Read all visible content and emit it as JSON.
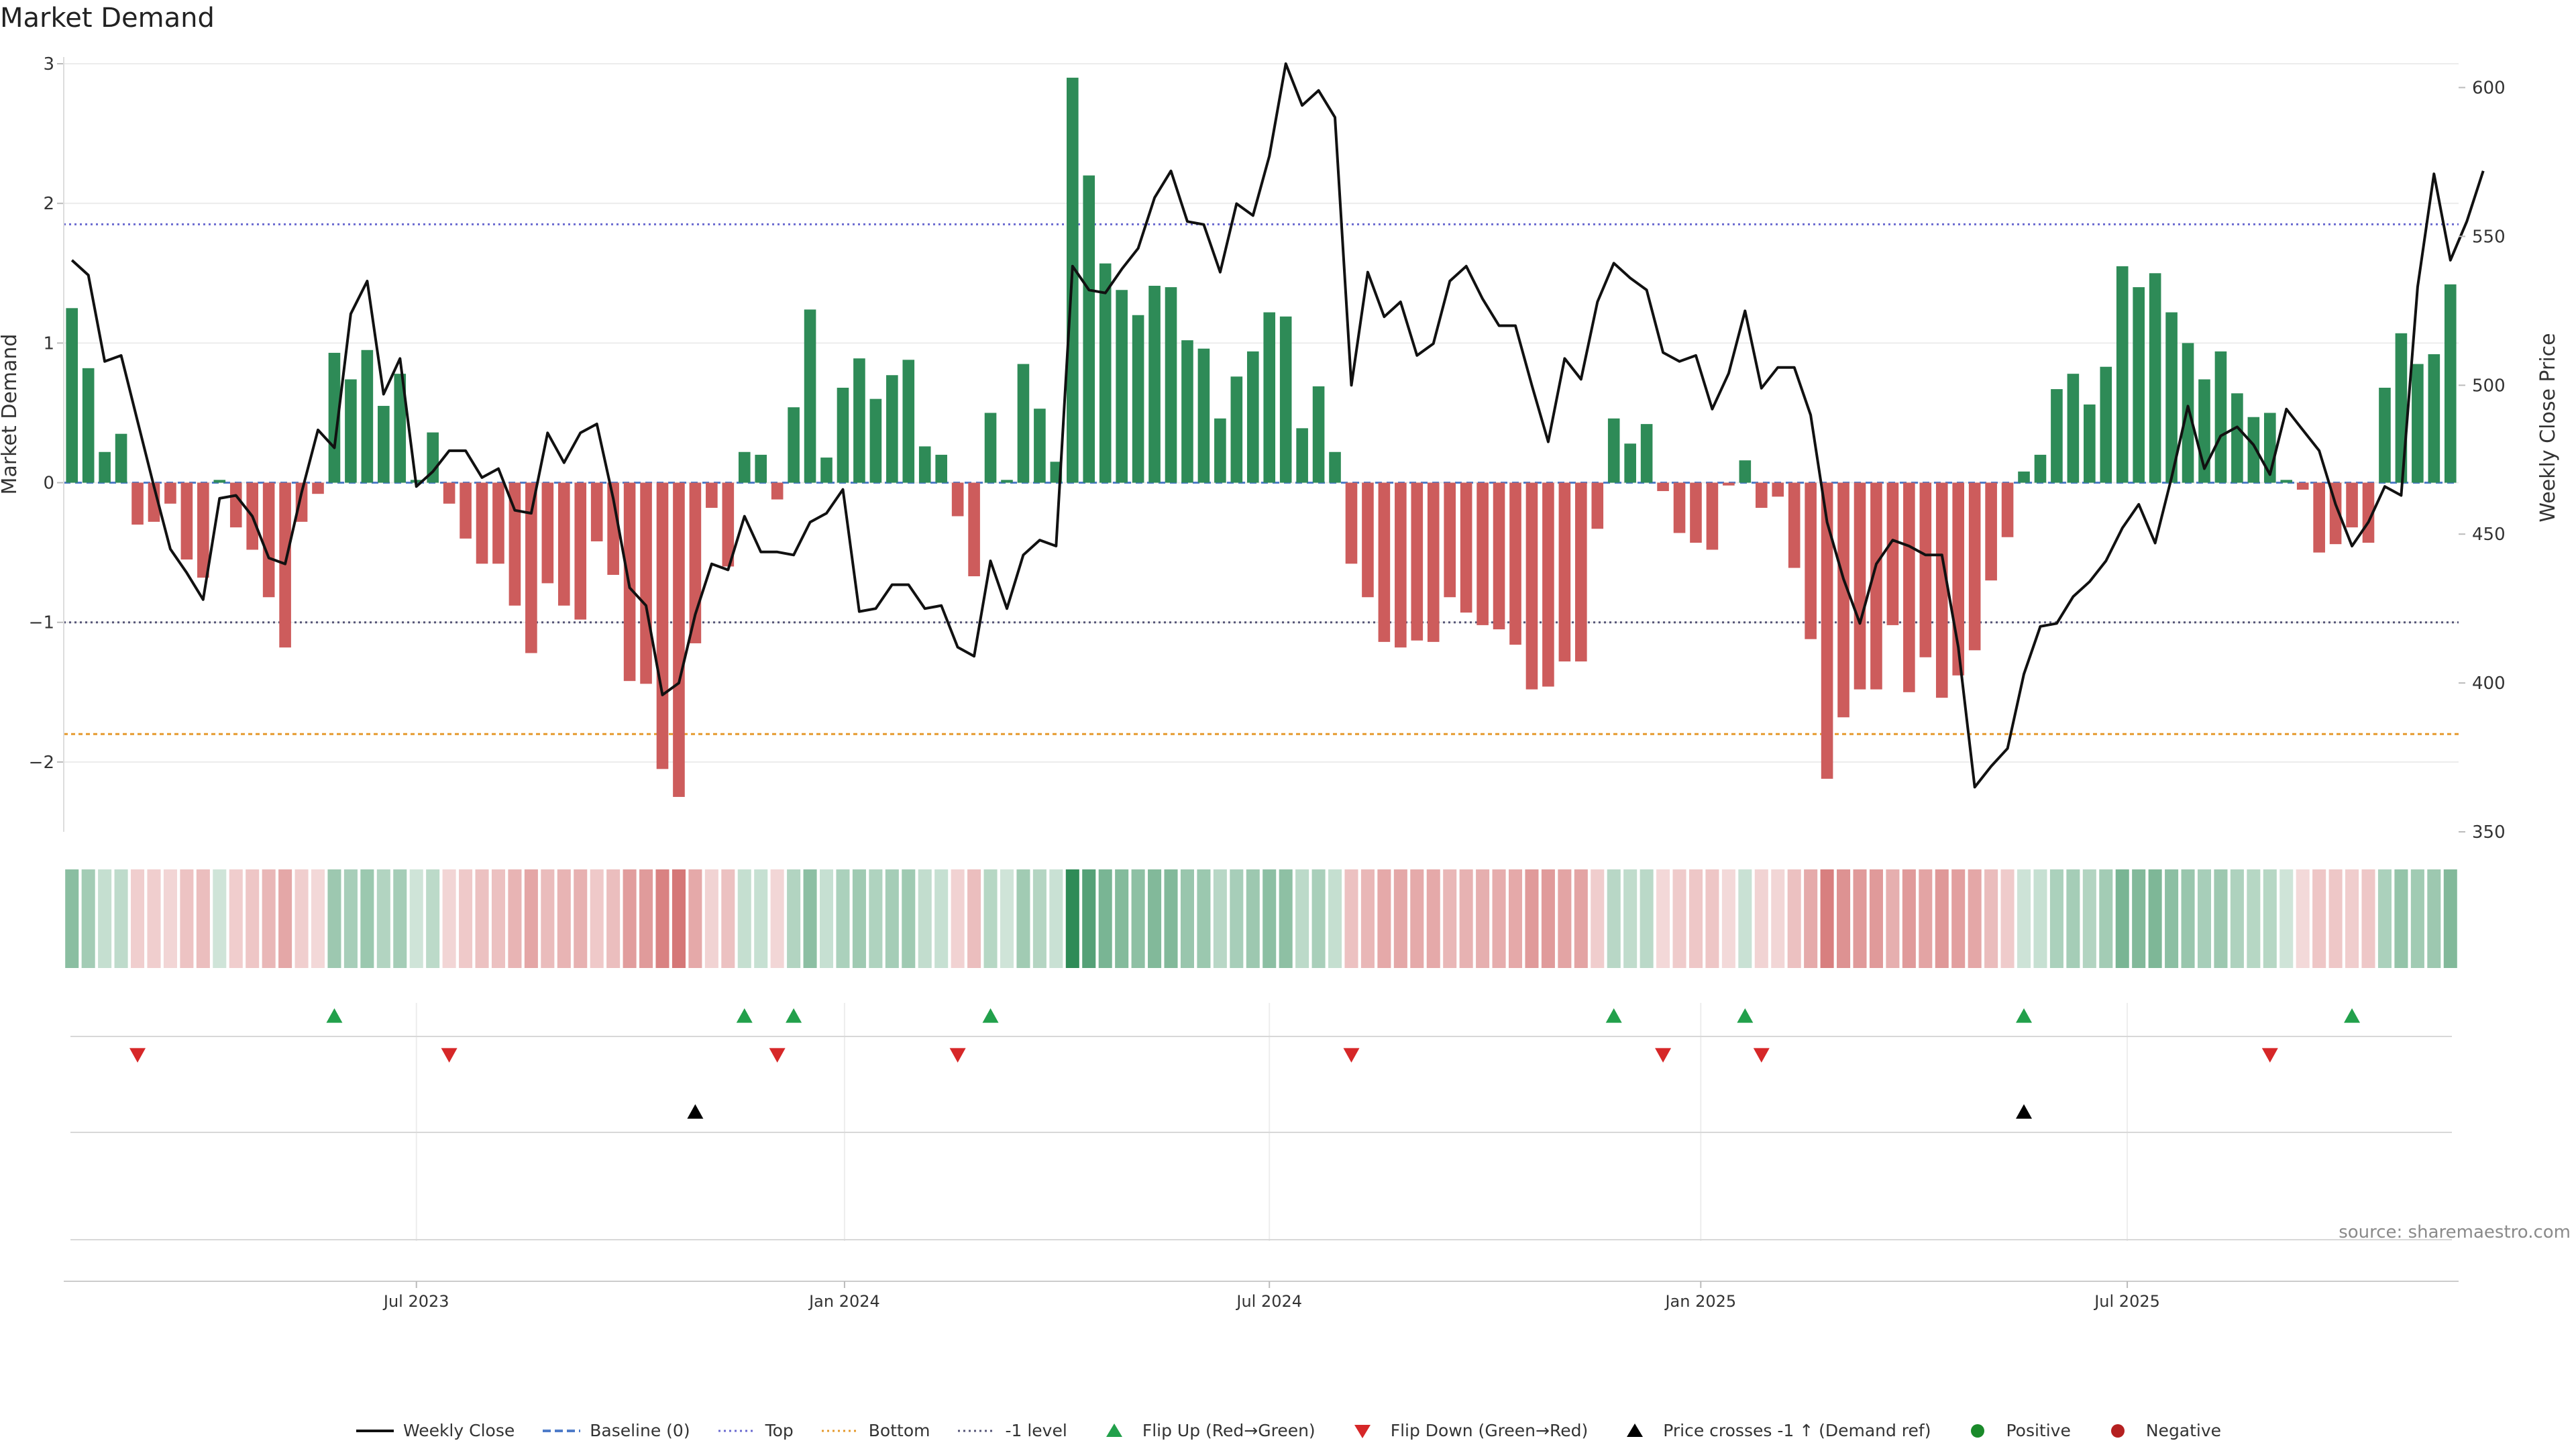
{
  "title": "Market Demand",
  "source": "source: sharemaestro.com",
  "colors": {
    "positive": "#2e8b57",
    "negative": "#cd5c5c",
    "price": "#111111",
    "baseline": "#4f7cc9",
    "top": "#6a6ad0",
    "bottom": "#e69a2e",
    "minus1": "#555577",
    "flip_up": "#22a04b",
    "flip_down": "#d62728",
    "cross": "#000000",
    "positive_dot": "#1a8a2a",
    "negative_dot": "#b52020"
  },
  "legend": [
    {
      "key": "price",
      "label": "Weekly Close",
      "kind": "line"
    },
    {
      "key": "baseline",
      "label": "Baseline (0)",
      "kind": "dash"
    },
    {
      "key": "top",
      "label": "Top",
      "kind": "dot"
    },
    {
      "key": "bottom",
      "label": "Bottom",
      "kind": "dot"
    },
    {
      "key": "minus1",
      "label": "-1 level",
      "kind": "dot"
    },
    {
      "key": "flip_up",
      "label": "Flip Up (Red→Green)",
      "kind": "tri-up"
    },
    {
      "key": "flip_down",
      "label": "Flip Down (Green→Red)",
      "kind": "tri-down"
    },
    {
      "key": "cross",
      "label": "Price crosses -1 ↑ (Demand ref)",
      "kind": "tri-up"
    },
    {
      "key": "positive_dot",
      "label": "Positive",
      "kind": "circle"
    },
    {
      "key": "negative_dot",
      "label": "Negative",
      "kind": "circle"
    }
  ],
  "chart_data": {
    "type": "bar",
    "title": "Market Demand",
    "ylabel": "Market Demand",
    "y2label": "Weekly Close Price",
    "ylim": [
      -2.5,
      3.0
    ],
    "y_ticks": [
      {
        "value": 3,
        "label": "3"
      },
      {
        "value": 2,
        "label": "2"
      },
      {
        "value": 1,
        "label": "1"
      },
      {
        "value": 0,
        "label": "0"
      },
      {
        "value": -1,
        "label": "−1"
      },
      {
        "value": -2,
        "label": "−2"
      }
    ],
    "y2lim": [
      350,
      608
    ],
    "y2_ticks": [
      {
        "value": 600,
        "label": "600"
      },
      {
        "value": 550,
        "label": "550"
      },
      {
        "value": 500,
        "label": "500"
      },
      {
        "value": 450,
        "label": "450"
      },
      {
        "value": 400,
        "label": "400"
      },
      {
        "value": 350,
        "label": "350"
      }
    ],
    "x_ticks": [
      {
        "index": 21.5,
        "label": "Jul 2023"
      },
      {
        "index": 47.6,
        "label": "Jan 2024"
      },
      {
        "index": 73.5,
        "label": "Jul 2024"
      },
      {
        "index": 99.8,
        "label": "Jan 2025"
      },
      {
        "index": 125.8,
        "label": "Jul 2025"
      }
    ],
    "reference_lines": {
      "top": 1.85,
      "bottom": -1.8,
      "minus1": -1.0,
      "baseline": 0
    },
    "demand": [
      1.25,
      0.82,
      0.22,
      0.35,
      -0.3,
      -0.28,
      -0.15,
      -0.55,
      -0.68,
      0.02,
      -0.32,
      -0.48,
      -0.82,
      -1.18,
      -0.28,
      -0.08,
      0.93,
      0.74,
      0.95,
      0.55,
      0.78,
      0.02,
      0.36,
      -0.15,
      -0.4,
      -0.58,
      -0.58,
      -0.88,
      -1.22,
      -0.72,
      -0.88,
      -0.98,
      -0.42,
      -0.66,
      -1.42,
      -1.44,
      -2.05,
      -2.25,
      -1.15,
      -0.18,
      -0.6,
      0.22,
      0.2,
      -0.12,
      0.54,
      1.24,
      0.18,
      0.68,
      0.89,
      0.6,
      0.77,
      0.88,
      0.26,
      0.2,
      -0.24,
      -0.67,
      0.5,
      0.02,
      0.85,
      0.53,
      0.15,
      2.9,
      2.2,
      1.57,
      1.38,
      1.2,
      1.41,
      1.4,
      1.02,
      0.96,
      0.46,
      0.76,
      0.94,
      1.22,
      1.19,
      0.39,
      0.69,
      0.22,
      -0.58,
      -0.82,
      -1.14,
      -1.18,
      -1.13,
      -1.14,
      -0.82,
      -0.93,
      -1.02,
      -1.05,
      -1.16,
      -1.48,
      -1.46,
      -1.28,
      -1.28,
      -0.33,
      0.46,
      0.28,
      0.42,
      -0.06,
      -0.36,
      -0.43,
      -0.48,
      -0.02,
      0.16,
      -0.18,
      -0.1,
      -0.61,
      -1.12,
      -2.12,
      -1.68,
      -1.48,
      -1.48,
      -1.02,
      -1.5,
      -1.25,
      -1.54,
      -1.38,
      -1.2,
      -0.7,
      -0.39,
      0.08,
      0.2,
      0.67,
      0.78,
      0.56,
      0.83,
      1.55,
      1.4,
      1.5,
      1.22,
      1.0,
      0.74,
      0.94,
      0.64,
      0.47,
      0.5,
      0.02,
      -0.05,
      -0.5,
      -0.44,
      -0.32,
      -0.43,
      0.68,
      1.07,
      0.85,
      0.92,
      1.42
    ],
    "price": [
      542,
      537,
      508,
      510,
      488,
      466,
      445,
      437,
      428,
      462,
      463,
      456,
      442,
      440,
      464,
      485,
      479,
      524,
      535,
      497,
      509,
      466,
      471,
      478,
      478,
      469,
      472,
      458,
      457,
      484,
      474,
      484,
      487,
      462,
      432,
      426,
      396,
      400,
      423,
      440,
      438,
      456,
      444,
      444,
      443,
      454,
      457,
      465,
      424,
      425,
      433,
      433,
      425,
      426,
      412,
      409,
      441,
      425,
      443,
      448,
      446,
      540,
      532,
      531,
      539,
      546,
      563,
      572,
      555,
      554,
      538,
      561,
      557,
      577,
      608,
      594,
      599,
      590,
      500,
      538,
      523,
      528,
      510,
      514,
      535,
      540,
      529,
      520,
      520,
      500,
      481,
      509,
      502,
      528,
      541,
      536,
      532,
      511,
      508,
      510,
      492,
      504,
      525,
      499,
      506,
      506,
      490,
      454,
      435,
      420,
      440,
      448,
      446,
      443,
      443,
      412,
      365,
      372,
      378,
      403,
      419,
      420,
      429,
      434,
      441,
      452,
      460,
      447,
      469,
      493,
      472,
      483,
      486,
      480,
      470,
      492,
      485,
      478,
      460,
      446,
      454,
      466,
      463,
      533,
      571,
      542,
      555,
      572
    ],
    "flip_up_idx": [
      16,
      41,
      44,
      56,
      94,
      102,
      119,
      139
    ],
    "flip_down_idx": [
      4,
      23,
      43,
      54,
      78,
      97,
      103,
      134
    ],
    "cross_idx": [
      38,
      119
    ]
  }
}
